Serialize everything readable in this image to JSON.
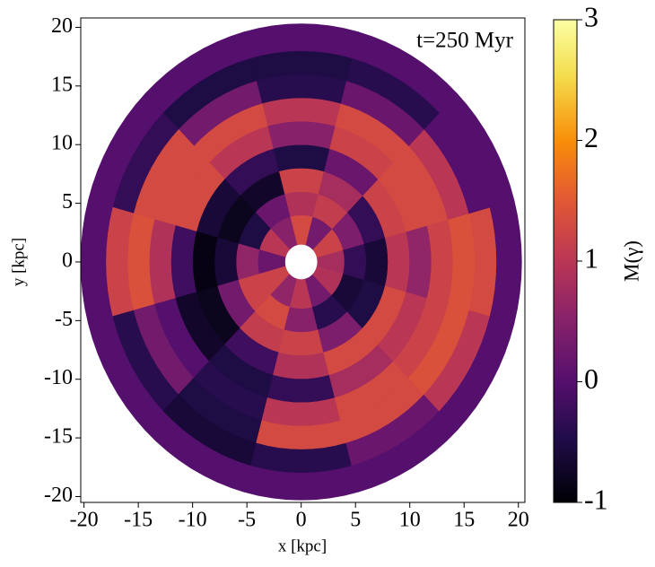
{
  "chart_data": {
    "type": "polar-heatmap",
    "annotation": "t=250 Myr",
    "x_label": "x [kpc]",
    "y_label": "y [kpc]",
    "colorbar_label": "M(γ)",
    "xlim": [
      -20.3,
      20.6
    ],
    "ylim": [
      -20.5,
      20.8
    ],
    "xticks": [
      -20,
      -15,
      -10,
      -5,
      0,
      5,
      10,
      15,
      20
    ],
    "yticks": [
      -20,
      -15,
      -10,
      -5,
      0,
      5,
      10,
      15,
      20
    ],
    "r_edges": [
      1.5,
      4,
      6,
      8,
      10,
      12,
      14,
      16,
      18,
      20.3
    ],
    "theta_centers": [
      0,
      30,
      60,
      90,
      120,
      150,
      180,
      210,
      240,
      270,
      300,
      330
    ],
    "values": [
      [
        0.8,
        1.2,
        0.3,
        1.3,
        0.5,
        1.0,
        0.2,
        1.2,
        0.6,
        1.0,
        0.3,
        0.9
      ],
      [
        -0.3,
        0.4,
        1.1,
        0.9,
        0.2,
        -0.5,
        0.6,
        1.2,
        1.3,
        0.5,
        -0.4,
        -0.6
      ],
      [
        -0.6,
        -0.3,
        0.8,
        1.2,
        -0.7,
        -0.8,
        -0.6,
        0.3,
        1.1,
        1.2,
        0.4,
        -0.5
      ],
      [
        1.0,
        1.2,
        0.2,
        -0.5,
        -0.3,
        -0.6,
        -0.9,
        -0.8,
        -0.2,
        0.9,
        1.3,
        1.3
      ],
      [
        0.6,
        1.3,
        1.2,
        0.5,
        1.0,
        1.3,
        -0.2,
        -0.7,
        -0.5,
        -0.3,
        0.8,
        1.0
      ],
      [
        1.2,
        1.3,
        1.3,
        1.0,
        1.3,
        1.3,
        0.9,
        0.0,
        -0.4,
        1.0,
        1.3,
        1.2
      ],
      [
        1.4,
        1.0,
        0.2,
        -0.4,
        0.3,
        1.3,
        1.4,
        0.3,
        -0.5,
        1.3,
        1.3,
        1.4
      ],
      [
        1.3,
        0.0,
        -0.4,
        -0.5,
        -0.5,
        -0.3,
        1.2,
        -0.4,
        -0.6,
        -0.4,
        0.2,
        1.0
      ],
      [
        0,
        0,
        0,
        0,
        0,
        0,
        0,
        0,
        0,
        0,
        0,
        0
      ]
    ],
    "colormap": "inferno",
    "clim": [
      -1,
      3
    ],
    "cticks": [
      -1,
      0,
      1,
      2,
      3
    ]
  }
}
